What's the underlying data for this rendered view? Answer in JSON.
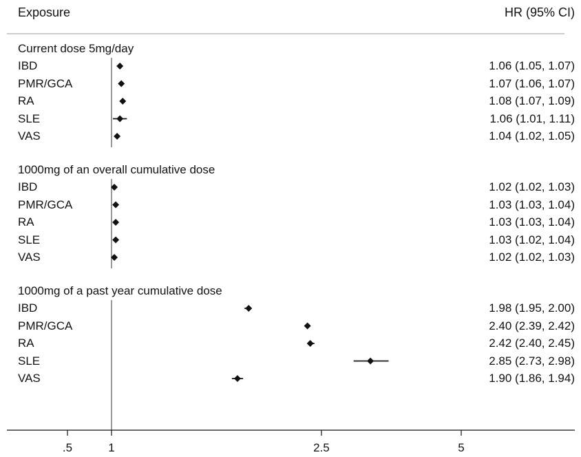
{
  "header": {
    "exposure_label": "Exposure",
    "hr_label": "HR (95% CI)"
  },
  "chart_data": {
    "type": "forest",
    "reference_line": 1,
    "x_ticks": [
      {
        "value": 0.5,
        "label": ".5"
      },
      {
        "value": 1,
        "label": "1"
      },
      {
        "value": 2.5,
        "label": "2.5"
      },
      {
        "value": 5,
        "label": "5"
      }
    ],
    "groups": [
      {
        "title": "Current dose 5mg/day",
        "rows": [
          {
            "label": "IBD",
            "hr": 1.06,
            "lo": 1.05,
            "hi": 1.07,
            "text": "1.06 (1.05, 1.07)"
          },
          {
            "label": "PMR/GCA",
            "hr": 1.07,
            "lo": 1.06,
            "hi": 1.07,
            "text": "1.07 (1.06, 1.07)"
          },
          {
            "label": "RA",
            "hr": 1.08,
            "lo": 1.07,
            "hi": 1.09,
            "text": "1.08 (1.07, 1.09)"
          },
          {
            "label": "SLE",
            "hr": 1.06,
            "lo": 1.01,
            "hi": 1.11,
            "text": "1.06 (1.01, 1.11)"
          },
          {
            "label": "VAS",
            "hr": 1.04,
            "lo": 1.02,
            "hi": 1.05,
            "text": "1.04 (1.02, 1.05)"
          }
        ]
      },
      {
        "title": "1000mg of an overall cumulative dose",
        "rows": [
          {
            "label": "IBD",
            "hr": 1.02,
            "lo": 1.02,
            "hi": 1.03,
            "text": "1.02 (1.02, 1.03)"
          },
          {
            "label": "PMR/GCA",
            "hr": 1.03,
            "lo": 1.03,
            "hi": 1.04,
            "text": "1.03 (1.03, 1.04)"
          },
          {
            "label": "RA",
            "hr": 1.03,
            "lo": 1.03,
            "hi": 1.04,
            "text": "1.03 (1.03, 1.04)"
          },
          {
            "label": "SLE",
            "hr": 1.03,
            "lo": 1.02,
            "hi": 1.04,
            "text": "1.03 (1.02, 1.04)"
          },
          {
            "label": "VAS",
            "hr": 1.02,
            "lo": 1.02,
            "hi": 1.03,
            "text": "1.02 (1.02, 1.03)"
          }
        ]
      },
      {
        "title": "1000mg of a past year cumulative dose",
        "rows": [
          {
            "label": "IBD",
            "hr": 1.98,
            "lo": 1.95,
            "hi": 2.0,
            "text": "1.98 (1.95, 2.00)"
          },
          {
            "label": "PMR/GCA",
            "hr": 2.4,
            "lo": 2.39,
            "hi": 2.42,
            "text": "2.40 (2.39, 2.42)"
          },
          {
            "label": "RA",
            "hr": 2.42,
            "lo": 2.4,
            "hi": 2.45,
            "text": "2.42 (2.40, 2.45)"
          },
          {
            "label": "SLE",
            "hr": 2.85,
            "lo": 2.73,
            "hi": 2.98,
            "text": "2.85 (2.73, 2.98)"
          },
          {
            "label": "VAS",
            "hr": 1.9,
            "lo": 1.86,
            "hi": 1.94,
            "text": "1.90 (1.86, 1.94)"
          }
        ]
      }
    ]
  }
}
